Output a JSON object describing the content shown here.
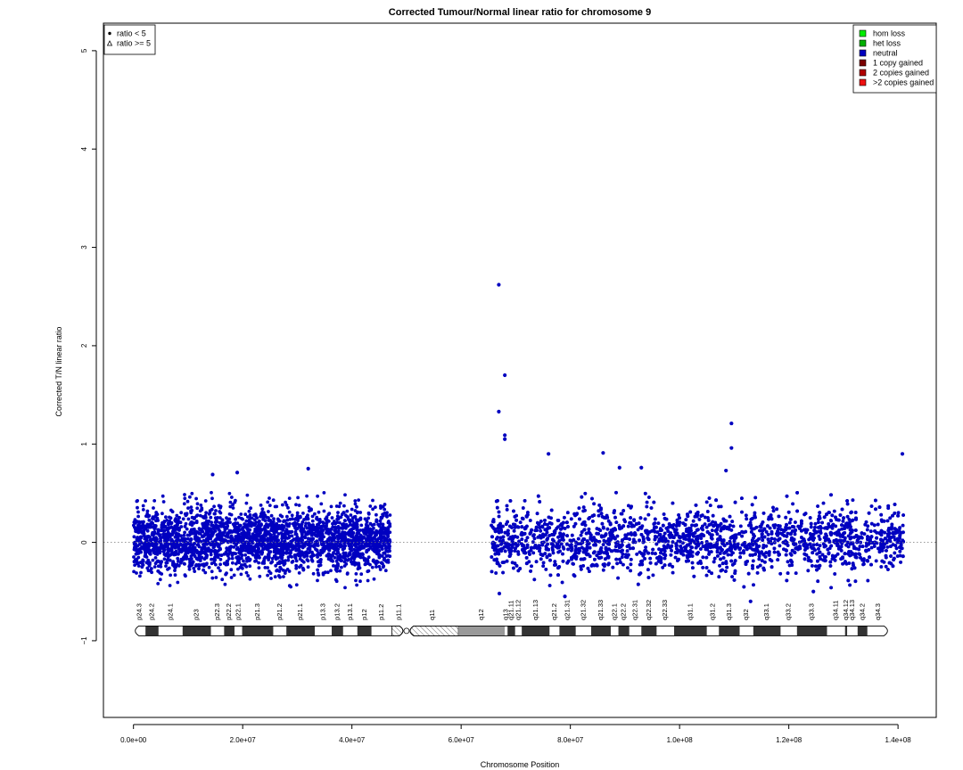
{
  "chart_data": {
    "type": "scatter",
    "title": "Corrected Tumour/Normal linear ratio for chromosome  9",
    "xlabel": "Chromosome Position",
    "ylabel": "Corrected T/N linear ratio",
    "xlim": [
      -5500000,
      147000000
    ],
    "ylim": [
      -1.78,
      5.28
    ],
    "x_ticks": [
      0,
      20000000,
      40000000,
      60000000,
      80000000,
      100000000,
      120000000,
      140000000
    ],
    "x_tick_labels": [
      "0.0e+00",
      "2.0e+07",
      "4.0e+07",
      "6.0e+07",
      "8.0e+07",
      "1.0e+08",
      "1.2e+08",
      "1.4e+08"
    ],
    "y_ticks": [
      -1,
      0,
      1,
      2,
      3,
      4,
      5
    ],
    "y_tick_labels": [
      "−1",
      "0",
      "1",
      "2",
      "3",
      "4",
      "5"
    ],
    "reference_line": {
      "y": 0,
      "style": "dotted"
    },
    "point_color": "#0000c0",
    "regions": [
      {
        "x_start": 0,
        "x_end": 47000000,
        "y_typical_min": -0.35,
        "y_typical_max": 0.4,
        "status": "neutral"
      },
      {
        "x_start": 65500000,
        "x_end": 141000000,
        "y_typical_min": -0.35,
        "y_typical_max": 0.4,
        "status": "neutral"
      }
    ],
    "outliers": [
      {
        "x": 66900000,
        "y": 2.62
      },
      {
        "x": 68000000,
        "y": 1.7
      },
      {
        "x": 66900000,
        "y": 1.33
      },
      {
        "x": 68000000,
        "y": 1.09
      },
      {
        "x": 68000000,
        "y": 1.05
      },
      {
        "x": 109500000,
        "y": 1.21
      },
      {
        "x": 109500000,
        "y": 0.96
      },
      {
        "x": 140800000,
        "y": 0.9
      },
      {
        "x": 86000000,
        "y": 0.91
      },
      {
        "x": 76000000,
        "y": 0.9
      },
      {
        "x": 32000000,
        "y": 0.75
      },
      {
        "x": 19000000,
        "y": 0.71
      },
      {
        "x": 14500000,
        "y": 0.69
      },
      {
        "x": 108500000,
        "y": 0.73
      },
      {
        "x": 93000000,
        "y": 0.76
      },
      {
        "x": 89000000,
        "y": 0.76
      },
      {
        "x": 67000000,
        "y": -0.52
      },
      {
        "x": 113000000,
        "y": -0.6
      },
      {
        "x": 124500000,
        "y": -0.5
      },
      {
        "x": 79000000,
        "y": -0.55
      }
    ],
    "legend_status": {
      "position": "top-left",
      "items": [
        {
          "label": "ratio < 5",
          "symbol": "dot"
        },
        {
          "label": "ratio >= 5",
          "symbol": "triangle"
        }
      ]
    },
    "legend_copy": {
      "position": "top-right",
      "items": [
        {
          "label": "hom loss",
          "color": "#00ee00"
        },
        {
          "label": "het loss",
          "color": "#00b000"
        },
        {
          "label": "neutral",
          "color": "#0000c0"
        },
        {
          "label": "1 copy gained",
          "color": "#7a0000"
        },
        {
          "label": "2 copies gained",
          "color": "#b00000"
        },
        {
          "label": ">2 copies gained",
          "color": "#ee1010"
        }
      ]
    },
    "ideogram": {
      "y": -0.9,
      "chrom_start": 0,
      "chrom_end": 138400000,
      "centromere": 50000000,
      "bands": [
        {
          "name": "p24.3",
          "start": 0,
          "end": 2200000,
          "stain": "gneg"
        },
        {
          "name": "p24.2",
          "start": 2200000,
          "end": 4600000,
          "stain": "gpos"
        },
        {
          "name": "p24.1",
          "start": 4600000,
          "end": 9000000,
          "stain": "gneg"
        },
        {
          "name": "p23",
          "start": 9000000,
          "end": 14200000,
          "stain": "gpos"
        },
        {
          "name": "p22.3",
          "start": 14200000,
          "end": 16600000,
          "stain": "gneg"
        },
        {
          "name": "p22.2",
          "start": 16600000,
          "end": 18500000,
          "stain": "gpos"
        },
        {
          "name": "p22.1",
          "start": 18500000,
          "end": 19900000,
          "stain": "gneg"
        },
        {
          "name": "p21.3",
          "start": 19900000,
          "end": 25600000,
          "stain": "gpos"
        },
        {
          "name": "p21.2",
          "start": 25600000,
          "end": 28000000,
          "stain": "gneg"
        },
        {
          "name": "p21.1",
          "start": 28000000,
          "end": 33200000,
          "stain": "gpos"
        },
        {
          "name": "p13.3",
          "start": 33200000,
          "end": 36300000,
          "stain": "gneg"
        },
        {
          "name": "p13.2",
          "start": 36300000,
          "end": 38400000,
          "stain": "gpos"
        },
        {
          "name": "p13.1",
          "start": 38400000,
          "end": 41000000,
          "stain": "gneg"
        },
        {
          "name": "p12",
          "start": 41000000,
          "end": 43600000,
          "stain": "gpos"
        },
        {
          "name": "p11.2",
          "start": 43600000,
          "end": 47300000,
          "stain": "gneg"
        },
        {
          "name": "p11.1",
          "start": 47300000,
          "end": 50000000,
          "stain": "stalk"
        },
        {
          "name": "q11",
          "start": 50000000,
          "end": 59500000,
          "stain": "stalk"
        },
        {
          "name": "q12",
          "start": 59500000,
          "end": 68000000,
          "stain": "gvar"
        },
        {
          "name": "q13",
          "start": 68000000,
          "end": 68500000,
          "stain": "gneg"
        },
        {
          "name": "q21.11",
          "start": 68500000,
          "end": 69900000,
          "stain": "gpos"
        },
        {
          "name": "q21.12",
          "start": 69900000,
          "end": 71100000,
          "stain": "gneg"
        },
        {
          "name": "q21.13",
          "start": 71100000,
          "end": 76200000,
          "stain": "gpos"
        },
        {
          "name": "q21.2",
          "start": 76200000,
          "end": 78000000,
          "stain": "gneg"
        },
        {
          "name": "q21.31",
          "start": 78000000,
          "end": 81000000,
          "stain": "gpos"
        },
        {
          "name": "q21.32",
          "start": 81000000,
          "end": 83800000,
          "stain": "gneg"
        },
        {
          "name": "q21.33",
          "start": 83800000,
          "end": 87400000,
          "stain": "gpos"
        },
        {
          "name": "q22.1",
          "start": 87400000,
          "end": 88800000,
          "stain": "gneg"
        },
        {
          "name": "q22.2",
          "start": 88800000,
          "end": 90800000,
          "stain": "gpos"
        },
        {
          "name": "q22.31",
          "start": 90800000,
          "end": 93000000,
          "stain": "gneg"
        },
        {
          "name": "q22.32",
          "start": 93000000,
          "end": 95800000,
          "stain": "gpos"
        },
        {
          "name": "q22.33",
          "start": 95800000,
          "end": 99000000,
          "stain": "gneg"
        },
        {
          "name": "q31.1",
          "start": 99000000,
          "end": 105000000,
          "stain": "gpos"
        },
        {
          "name": "q31.2",
          "start": 105000000,
          "end": 107200000,
          "stain": "gneg"
        },
        {
          "name": "q31.3",
          "start": 107200000,
          "end": 111000000,
          "stain": "gpos"
        },
        {
          "name": "q32",
          "start": 111000000,
          "end": 113500000,
          "stain": "gneg"
        },
        {
          "name": "q33.1",
          "start": 113500000,
          "end": 118500000,
          "stain": "gpos"
        },
        {
          "name": "q33.2",
          "start": 118500000,
          "end": 121500000,
          "stain": "gneg"
        },
        {
          "name": "q33.3",
          "start": 121500000,
          "end": 127000000,
          "stain": "gpos"
        },
        {
          "name": "q34.11",
          "start": 127000000,
          "end": 130300000,
          "stain": "gneg"
        },
        {
          "name": "q34.12",
          "start": 130300000,
          "end": 130700000,
          "stain": "gpos"
        },
        {
          "name": "q34.13",
          "start": 130700000,
          "end": 132600000,
          "stain": "gneg"
        },
        {
          "name": "q34.2",
          "start": 132600000,
          "end": 134400000,
          "stain": "gpos"
        },
        {
          "name": "q34.3",
          "start": 134400000,
          "end": 138400000,
          "stain": "gneg"
        }
      ]
    }
  }
}
